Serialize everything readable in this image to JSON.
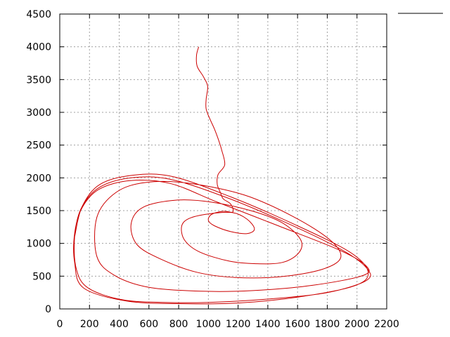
{
  "chart_data": {
    "type": "line",
    "title": "",
    "xlabel": "",
    "ylabel": "",
    "xlim": [
      0,
      2200
    ],
    "ylim": [
      0,
      4500
    ],
    "xticks": [
      0,
      200,
      400,
      600,
      800,
      1000,
      1200,
      1400,
      1600,
      1800,
      2000,
      2200
    ],
    "yticks": [
      0,
      500,
      1000,
      1500,
      2000,
      2500,
      3000,
      3500,
      4000,
      4500
    ],
    "grid": true,
    "legend": {
      "position": "top-right",
      "entries": [
        {
          "name": "",
          "color": "#000000"
        }
      ]
    },
    "series": [
      {
        "color": "#cc0000",
        "points": [
          [
            935,
            4000
          ],
          [
            920,
            3870
          ],
          [
            925,
            3700
          ],
          [
            965,
            3550
          ],
          [
            995,
            3400
          ],
          [
            985,
            3200
          ],
          [
            985,
            3050
          ],
          [
            1010,
            2900
          ],
          [
            1040,
            2750
          ],
          [
            1065,
            2600
          ],
          [
            1090,
            2420
          ],
          [
            1110,
            2200
          ],
          [
            1065,
            2050
          ],
          [
            1060,
            1900
          ],
          [
            1080,
            1780
          ],
          [
            1100,
            1680
          ],
          [
            1150,
            1600
          ],
          [
            1165,
            1480
          ],
          [
            1100,
            1490
          ],
          [
            1020,
            1440
          ],
          [
            1000,
            1350
          ],
          [
            1040,
            1270
          ],
          [
            1150,
            1180
          ],
          [
            1260,
            1150
          ],
          [
            1310,
            1220
          ],
          [
            1260,
            1370
          ],
          [
            1160,
            1470
          ],
          [
            1000,
            1450
          ],
          [
            870,
            1380
          ],
          [
            820,
            1260
          ],
          [
            840,
            1050
          ],
          [
            940,
            870
          ],
          [
            1140,
            730
          ],
          [
            1320,
            690
          ],
          [
            1500,
            710
          ],
          [
            1610,
            860
          ],
          [
            1620,
            1060
          ],
          [
            1500,
            1310
          ],
          [
            1300,
            1490
          ],
          [
            1020,
            1630
          ],
          [
            780,
            1660
          ],
          [
            560,
            1550
          ],
          [
            480,
            1300
          ],
          [
            520,
            980
          ],
          [
            680,
            760
          ],
          [
            920,
            560
          ],
          [
            1180,
            480
          ],
          [
            1480,
            490
          ],
          [
            1760,
            600
          ],
          [
            1890,
            780
          ],
          [
            1820,
            1050
          ],
          [
            1570,
            1410
          ],
          [
            1240,
            1740
          ],
          [
            860,
            1920
          ],
          [
            580,
            1930
          ],
          [
            380,
            1780
          ],
          [
            250,
            1400
          ],
          [
            250,
            800
          ],
          [
            370,
            510
          ],
          [
            600,
            330
          ],
          [
            950,
            270
          ],
          [
            1300,
            280
          ],
          [
            1700,
            360
          ],
          [
            2040,
            510
          ],
          [
            2060,
            660
          ],
          [
            1880,
            900
          ],
          [
            1480,
            1260
          ],
          [
            1060,
            1630
          ],
          [
            750,
            1910
          ],
          [
            480,
            1960
          ],
          [
            260,
            1820
          ],
          [
            140,
            1500
          ],
          [
            100,
            1100
          ],
          [
            110,
            620
          ],
          [
            190,
            320
          ],
          [
            420,
            140
          ],
          [
            700,
            100
          ],
          [
            1000,
            100
          ],
          [
            1400,
            150
          ],
          [
            1800,
            250
          ],
          [
            2060,
            430
          ],
          [
            2070,
            610
          ],
          [
            1900,
            900
          ],
          [
            1500,
            1340
          ],
          [
            1110,
            1710
          ],
          [
            740,
            1980
          ],
          [
            480,
            2000
          ],
          [
            270,
            1860
          ],
          [
            150,
            1560
          ],
          [
            100,
            1150
          ],
          [
            100,
            710
          ],
          [
            160,
            320
          ],
          [
            450,
            120
          ],
          [
            800,
            80
          ],
          [
            1200,
            90
          ],
          [
            1600,
            180
          ],
          [
            1980,
            350
          ],
          [
            2075,
            560
          ],
          [
            1950,
            870
          ],
          [
            1560,
            1310
          ],
          [
            1150,
            1710
          ],
          [
            760,
            2020
          ],
          [
            490,
            2040
          ],
          [
            270,
            1900
          ],
          [
            150,
            1560
          ],
          [
            100,
            1100
          ]
        ]
      }
    ]
  }
}
